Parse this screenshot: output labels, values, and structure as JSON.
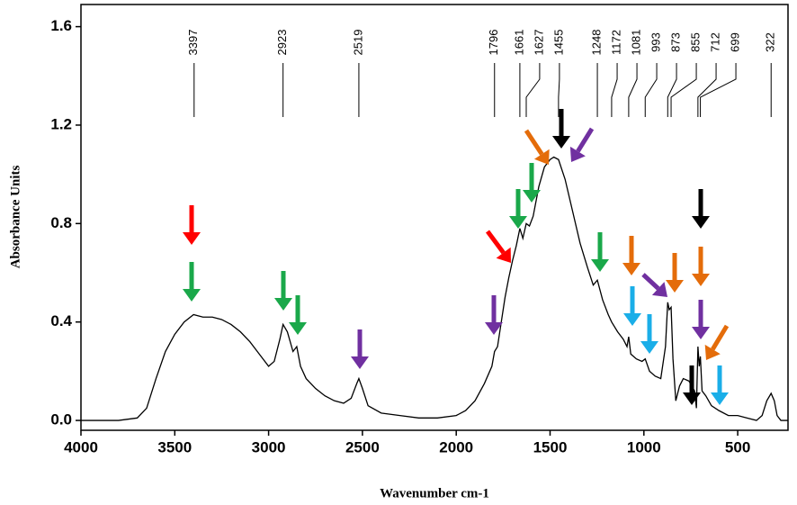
{
  "chart_data": {
    "type": "line",
    "xlabel": "Wavenumber cm-1",
    "ylabel": "Absorbance Units",
    "x": [
      4000,
      3800,
      3700,
      3650,
      3600,
      3550,
      3500,
      3450,
      3400,
      3350,
      3300,
      3250,
      3200,
      3150,
      3100,
      3050,
      3000,
      2970,
      2940,
      2923,
      2900,
      2870,
      2850,
      2830,
      2800,
      2750,
      2700,
      2650,
      2600,
      2560,
      2530,
      2519,
      2500,
      2470,
      2400,
      2300,
      2200,
      2100,
      2000,
      1950,
      1900,
      1850,
      1810,
      1796,
      1780,
      1760,
      1740,
      1720,
      1700,
      1680,
      1661,
      1645,
      1627,
      1610,
      1590,
      1560,
      1530,
      1500,
      1480,
      1455,
      1420,
      1380,
      1340,
      1300,
      1270,
      1248,
      1220,
      1190,
      1172,
      1140,
      1110,
      1090,
      1081,
      1070,
      1040,
      1010,
      993,
      970,
      940,
      910,
      885,
      873,
      865,
      855,
      845,
      830,
      810,
      790,
      760,
      730,
      720,
      712,
      705,
      699,
      690,
      670,
      640,
      600,
      550,
      500,
      450,
      400,
      370,
      345,
      322,
      305,
      290,
      270,
      232
    ],
    "series": [
      {
        "name": "spectrum",
        "color": "#000000",
        "values": [
          0.0,
          0.0,
          0.01,
          0.05,
          0.17,
          0.28,
          0.35,
          0.4,
          0.43,
          0.42,
          0.42,
          0.41,
          0.39,
          0.36,
          0.32,
          0.27,
          0.22,
          0.24,
          0.33,
          0.39,
          0.36,
          0.28,
          0.3,
          0.22,
          0.17,
          0.13,
          0.1,
          0.08,
          0.07,
          0.09,
          0.15,
          0.17,
          0.13,
          0.06,
          0.03,
          0.02,
          0.01,
          0.01,
          0.02,
          0.04,
          0.08,
          0.15,
          0.22,
          0.28,
          0.3,
          0.4,
          0.5,
          0.58,
          0.65,
          0.71,
          0.78,
          0.74,
          0.8,
          0.79,
          0.83,
          0.95,
          1.03,
          1.06,
          1.07,
          1.06,
          0.98,
          0.85,
          0.72,
          0.62,
          0.55,
          0.57,
          0.49,
          0.43,
          0.4,
          0.36,
          0.33,
          0.3,
          0.34,
          0.27,
          0.25,
          0.24,
          0.25,
          0.2,
          0.18,
          0.17,
          0.3,
          0.48,
          0.45,
          0.46,
          0.25,
          0.08,
          0.14,
          0.17,
          0.16,
          0.12,
          0.05,
          0.3,
          0.22,
          0.26,
          0.12,
          0.1,
          0.06,
          0.04,
          0.02,
          0.02,
          0.01,
          0.0,
          0.02,
          0.08,
          0.11,
          0.08,
          0.02,
          0.0,
          0.0
        ]
      }
    ],
    "peaks": [
      3397,
      2923,
      2519,
      1796,
      1661,
      1627,
      1455,
      1248,
      1172,
      1081,
      993,
      873,
      855,
      712,
      699,
      322
    ],
    "xlim": [
      4000,
      232
    ],
    "xticks": [
      4000,
      3500,
      3000,
      2500,
      2000,
      1500,
      1000,
      500
    ],
    "ylim": [
      -0.04,
      1.69
    ],
    "yticks": [
      {
        "value": 0,
        "label": "0.0"
      },
      0.4,
      0.8,
      1.2,
      1.6
    ]
  }
}
